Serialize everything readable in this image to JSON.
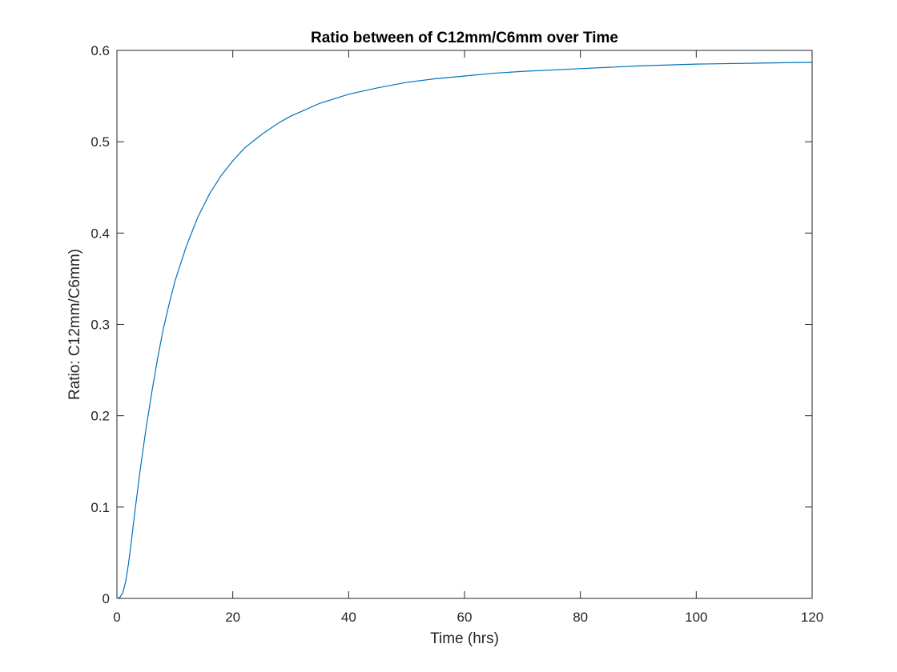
{
  "chart_data": {
    "type": "line",
    "title": "Ratio between of C12mm/C6mm over Time",
    "xlabel": "Time (hrs)",
    "ylabel": "Ratio: C12mm/C6mm)",
    "xlim": [
      0,
      120
    ],
    "ylim": [
      0,
      0.6
    ],
    "xticks": [
      0,
      20,
      40,
      60,
      80,
      100,
      120
    ],
    "yticks": [
      0,
      0.1,
      0.2,
      0.3,
      0.4,
      0.5,
      0.6
    ],
    "xtick_labels": [
      "0",
      "20",
      "40",
      "60",
      "80",
      "100",
      "120"
    ],
    "ytick_labels": [
      "0",
      "0.1",
      "0.2",
      "0.3",
      "0.4",
      "0.5",
      "0.6"
    ],
    "grid": false,
    "box": true,
    "series": [
      {
        "color": "#0072BD",
        "x": [
          0,
          0.5,
          1,
          1.5,
          2,
          2.5,
          3,
          4,
          5,
          6,
          7,
          8,
          9,
          10,
          12,
          14,
          16,
          18,
          20,
          22,
          25,
          28,
          30,
          35,
          40,
          45,
          50,
          55,
          60,
          65,
          70,
          80,
          90,
          100,
          110,
          120
        ],
        "y": [
          0,
          0.001,
          0.006,
          0.018,
          0.038,
          0.063,
          0.09,
          0.14,
          0.185,
          0.225,
          0.262,
          0.295,
          0.322,
          0.347,
          0.386,
          0.418,
          0.443,
          0.463,
          0.479,
          0.493,
          0.508,
          0.521,
          0.528,
          0.542,
          0.552,
          0.559,
          0.565,
          0.569,
          0.572,
          0.575,
          0.577,
          0.58,
          0.583,
          0.585,
          0.586,
          0.587
        ]
      }
    ]
  }
}
